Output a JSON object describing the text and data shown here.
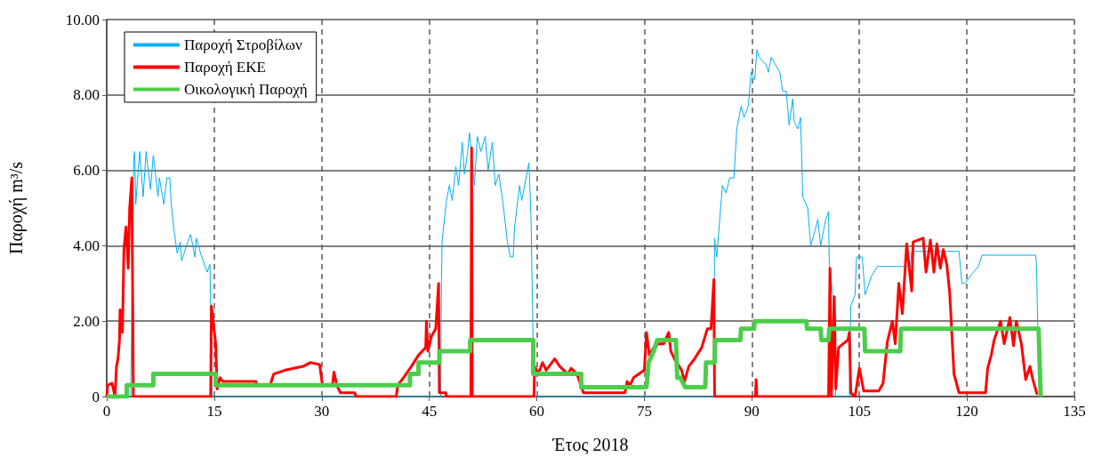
{
  "chart_data": {
    "type": "line",
    "xlabel": "Έτος 2018",
    "ylabel": "Παροχή m³/s",
    "xlim": [
      0,
      135
    ],
    "xticks": [
      0,
      15,
      30,
      45,
      60,
      75,
      90,
      105,
      120,
      135
    ],
    "ylim": [
      0,
      10
    ],
    "yticks": [
      0,
      {
        "value": 2,
        "label": "2.00"
      },
      {
        "value": 4,
        "label": "4.00"
      },
      {
        "value": 6,
        "label": "6.00"
      },
      {
        "value": 8,
        "label": "8.00"
      },
      {
        "value": 10,
        "label": "10.00"
      }
    ],
    "grid": true,
    "legend": "top left",
    "marker": "none",
    "series": [
      {
        "name": "Παροχή Στροβίλων",
        "color": "#00b0f0",
        "x": [
          0,
          3.35,
          3.76,
          3.9,
          4.05,
          4.6,
          5.08,
          5.49,
          6.1,
          6.5,
          7.15,
          7.35,
          7.97,
          8.38,
          8.8,
          9.0,
          9.4,
          9.83,
          10.24,
          10.45,
          11.3,
          11.7,
          12.3,
          12.5,
          13.1,
          14.0,
          14.4,
          14.7,
          46.6,
          46.7,
          46.8,
          47.4,
          47.8,
          48.2,
          48.7,
          49.1,
          49.6,
          49.9,
          50.3,
          50.6,
          51.3,
          51.7,
          52.2,
          52.8,
          53.2,
          53.8,
          54.2,
          54.7,
          55.3,
          55.9,
          56.3,
          56.7,
          56.9,
          57.6,
          57.9,
          58.9,
          59.2,
          59.6,
          84.7,
          84.8,
          85.1,
          85.6,
          85.9,
          86.4,
          86.9,
          87.5,
          87.9,
          88.5,
          88.9,
          89.5,
          89.9,
          90.4,
          90.7,
          91.0,
          92.0,
          92.3,
          92.7,
          93.9,
          94.3,
          94.8,
          95.2,
          95.7,
          95.9,
          96.4,
          96.8,
          97.1,
          97.8,
          98.2,
          98.8,
          99.2,
          99.6,
          100.3,
          100.7,
          100.8,
          101.3,
          101.7,
          103.6,
          103.8,
          104.4,
          104.6,
          105.4,
          105.8,
          106.7,
          107.5,
          112.1,
          112.3,
          118.9,
          119.3,
          119.7,
          120.7,
          121.6,
          122.1,
          129.6,
          129.7,
          130.1
        ],
        "values": [
          0,
          0,
          6.3,
          6.5,
          5.1,
          6.5,
          5.3,
          6.5,
          5.5,
          6.4,
          5.3,
          5.8,
          5.1,
          5.8,
          5.8,
          5.1,
          4.4,
          3.8,
          4.1,
          3.6,
          4.1,
          4.3,
          3.7,
          4.2,
          3.8,
          3.3,
          3.5,
          0,
          0,
          3.1,
          4.15,
          5.2,
          5.6,
          5.2,
          6.1,
          5.6,
          6.75,
          5.9,
          6.4,
          7.0,
          5.6,
          6.9,
          6.5,
          6.9,
          6.0,
          6.75,
          5.6,
          5.9,
          5.1,
          4.1,
          3.7,
          3.7,
          4.5,
          5.6,
          5.2,
          6.2,
          4.7,
          0,
          0,
          4.2,
          3.7,
          4.9,
          5.6,
          5.4,
          5.8,
          5.8,
          7.1,
          7.7,
          7.4,
          7.7,
          8.6,
          8.4,
          9.2,
          9.0,
          8.8,
          8.6,
          9.0,
          8.6,
          8.1,
          8.1,
          7.2,
          7.9,
          7.3,
          7.1,
          7.4,
          5.3,
          5.0,
          4.0,
          4.4,
          4.7,
          4.0,
          4.7,
          4.9,
          3.5,
          2.7,
          0,
          0,
          2.4,
          2.7,
          3.7,
          3.7,
          2.7,
          3.2,
          3.45,
          3.45,
          3.85,
          3.85,
          3.0,
          3.0,
          3.25,
          3.45,
          3.75,
          3.75,
          3.5,
          0
        ]
      },
      {
        "name": "Παροχή ΕΚΕ",
        "color": "#ff0000",
        "x": [
          0,
          0.12,
          0.74,
          1.16,
          1.36,
          1.57,
          1.78,
          1.86,
          2.19,
          2.4,
          2.69,
          3.0,
          3.2,
          3.5,
          3.72,
          14.5,
          14.6,
          15.2,
          15.4,
          15.8,
          16.2,
          20.8,
          21.0,
          22.8,
          23.3,
          24.9,
          27.4,
          28.4,
          29.7,
          30.1,
          31.5,
          31.7,
          32.1,
          32.6,
          34.6,
          34.8,
          40.4,
          40.6,
          41.4,
          42.5,
          43.5,
          44.5,
          44.6,
          44.8,
          45.3,
          45.9,
          46.3,
          46.4,
          46.5,
          47.3,
          47.4,
          50.8,
          50.9,
          51.0,
          59.6,
          59.7,
          60.2,
          60.8,
          61.3,
          62.5,
          63.2,
          64.3,
          64.8,
          65.6,
          66.5,
          72.3,
          72.6,
          73.0,
          73.5,
          75.0,
          75.3,
          75.7,
          76.3,
          77.0,
          77.7,
          78.4,
          78.7,
          79.2,
          80.2,
          80.6,
          81.2,
          82.0,
          83.0,
          83.8,
          84.3,
          84.7,
          84.8,
          90.5,
          90.6,
          90.7,
          100.7,
          100.9,
          101.1,
          101.5,
          101.7,
          102.1,
          103.4,
          103.6,
          103.8,
          104.4,
          105.0,
          105.6,
          107.7,
          108.3,
          108.9,
          109.6,
          110.0,
          110.5,
          111.0,
          111.6,
          112.3,
          112.5,
          113.9,
          114.3,
          114.9,
          115.4,
          115.8,
          116.3,
          116.7,
          117.2,
          117.6,
          118.2,
          118.9,
          122.6,
          122.9,
          123.4,
          123.8,
          124.7,
          125.2,
          126.0,
          126.5,
          126.9,
          127.6,
          128.2,
          128.8,
          129.2,
          129.8
        ],
        "values": [
          0,
          0.3,
          0.35,
          0,
          0.8,
          1.0,
          1.5,
          2.3,
          1.7,
          3.9,
          4.5,
          3.4,
          5.0,
          5.8,
          0,
          0,
          2.4,
          1.4,
          0.2,
          0.5,
          0.4,
          0.4,
          0.3,
          0.3,
          0.6,
          0.7,
          0.8,
          0.9,
          0.85,
          0.3,
          0.3,
          0.65,
          0.3,
          0.1,
          0.1,
          0,
          0,
          0.3,
          0.5,
          0.8,
          1.1,
          1.3,
          2.0,
          1.2,
          1.6,
          1.8,
          3.0,
          0.1,
          0.1,
          0.1,
          0,
          0,
          6.6,
          0,
          0,
          0.8,
          0.6,
          0.9,
          0.7,
          1.0,
          0.8,
          0.6,
          0.75,
          0.6,
          0.1,
          0.1,
          0.4,
          0.3,
          0.5,
          0.7,
          1.7,
          1.1,
          1.3,
          1.4,
          1.4,
          1.7,
          1.2,
          1.0,
          0.7,
          0.4,
          0.8,
          1.0,
          1.3,
          1.8,
          1.8,
          3.1,
          0,
          0,
          0.45,
          0,
          0,
          3.4,
          0,
          2.65,
          0.2,
          1.3,
          1.5,
          1.7,
          0.1,
          0,
          0.75,
          0.15,
          0.15,
          0.35,
          1.45,
          2.0,
          1.4,
          3.0,
          2.2,
          4.05,
          2.8,
          4.1,
          4.2,
          3.3,
          4.15,
          3.3,
          4.05,
          3.4,
          3.9,
          3.5,
          2.75,
          0.6,
          0.1,
          0.1,
          0.75,
          1.1,
          1.5,
          2.0,
          1.4,
          2.1,
          1.35,
          2.0,
          1.4,
          0.45,
          0.8,
          0.45,
          0.05
        ]
      },
      {
        "name": "Οικολογική Παροχή",
        "color": "#4ccd4c",
        "x": [
          0,
          2.8,
          2.8,
          6.5,
          6.5,
          15.2,
          15.2,
          42.3,
          42.3,
          43.5,
          43.5,
          46.4,
          46.4,
          50.7,
          50.7,
          59.5,
          59.5,
          66.2,
          66.2,
          75.3,
          75.6,
          76.3,
          76.8,
          79.4,
          79.6,
          80.0,
          80.7,
          83.5,
          83.6,
          84.8,
          84.9,
          88.4,
          88.5,
          90.3,
          90.4,
          97.6,
          97.7,
          99.6,
          99.7,
          100.7,
          100.8,
          105.7,
          105.8,
          110.7,
          110.8,
          130.0,
          130.3
        ],
        "values": [
          0,
          0,
          0.3,
          0.3,
          0.6,
          0.6,
          0.3,
          0.3,
          0.6,
          0.6,
          0.9,
          0.9,
          1.2,
          1.2,
          1.5,
          1.5,
          0.6,
          0.6,
          0.25,
          0.25,
          0.9,
          1.2,
          1.5,
          1.5,
          0.5,
          0.5,
          0.25,
          0.25,
          0.9,
          0.9,
          1.5,
          1.5,
          1.8,
          1.8,
          2.0,
          2.0,
          1.8,
          1.8,
          1.5,
          1.5,
          1.8,
          1.8,
          1.2,
          1.2,
          1.8,
          1.8,
          0
        ]
      }
    ]
  }
}
